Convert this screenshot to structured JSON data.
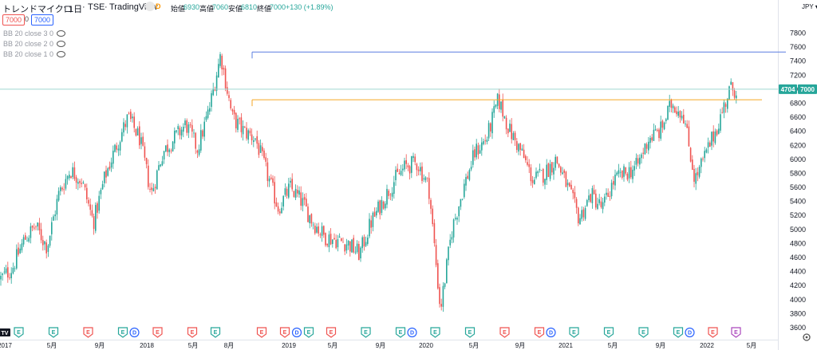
{
  "header": {
    "symbol_name": "トレンドマイクロ",
    "interval": "1日",
    "exchange": "TSE",
    "source": "TradingView",
    "badge": "D",
    "open_label": "始値",
    "open_value": "6930",
    "high_label": "高値",
    "high_value": "7060",
    "low_label": "安値",
    "low_value": "6810",
    "close_label": "終値",
    "close_value": "7000",
    "change": "+130 (+1.89%)"
  },
  "price_box": {
    "sell": "7000",
    "spread": "0",
    "buy": "7000"
  },
  "indicators": [
    {
      "label": "BB 20 close 3 0"
    },
    {
      "label": "BB 20 close 2 0"
    },
    {
      "label": "BB 20 close 1 0"
    }
  ],
  "currency_label": "JPY ▾",
  "logo_text": "TV",
  "colors": {
    "up": "#26a69a",
    "down": "#ef5350",
    "hline_blue": "#5b7fe0",
    "hline_orange": "#f5a623",
    "hline_teal": "#9fd6d1",
    "price_label": "#26a69a",
    "event_E_green": "#26a69a",
    "event_E_red": "#ef5350",
    "event_D": "#2962ff",
    "event_E_purple": "#ab47bc"
  },
  "chart_data": {
    "type": "candlestick",
    "title": "トレンドマイクロ · 1日 · TSE",
    "y_axis": {
      "ticks": [
        3600,
        3800,
        4000,
        4200,
        4400,
        4600,
        4800,
        5000,
        5200,
        5400,
        5600,
        5800,
        6000,
        6200,
        6400,
        6600,
        6800,
        7000,
        7200,
        7400,
        7600,
        7800
      ],
      "ylim": [
        3600,
        7840
      ],
      "position": "right"
    },
    "x_axis": {
      "ticks": [
        "2017",
        "5月",
        "9月",
        "2018",
        "5月",
        "8月",
        "2019",
        "5月",
        "9月",
        "2020",
        "5月",
        "9月",
        "2021",
        "5月",
        "9月",
        "2022",
        "5月"
      ],
      "range": [
        "2017-01",
        "2022-05"
      ]
    },
    "series_path": [
      {
        "date": "2017-01",
        "price": 4300
      },
      {
        "date": "2017-02",
        "price": 4450
      },
      {
        "date": "2017-03",
        "price": 4850
      },
      {
        "date": "2017-04",
        "price": 5050
      },
      {
        "date": "2017-05",
        "price": 4750
      },
      {
        "date": "2017-06",
        "price": 5500
      },
      {
        "date": "2017-07",
        "price": 5850
      },
      {
        "date": "2017-08",
        "price": 5700
      },
      {
        "date": "2017-09",
        "price": 5100
      },
      {
        "date": "2017-10",
        "price": 5750
      },
      {
        "date": "2017-11",
        "price": 6200
      },
      {
        "date": "2017-12",
        "price": 6600
      },
      {
        "date": "2018-01",
        "price": 6300
      },
      {
        "date": "2018-02",
        "price": 5500
      },
      {
        "date": "2018-03",
        "price": 6100
      },
      {
        "date": "2018-04",
        "price": 6300
      },
      {
        "date": "2018-05",
        "price": 6500
      },
      {
        "date": "2018-06",
        "price": 6150
      },
      {
        "date": "2018-07",
        "price": 6700
      },
      {
        "date": "2018-08",
        "price": 7500
      },
      {
        "date": "2018-09",
        "price": 6600
      },
      {
        "date": "2018-10",
        "price": 6400
      },
      {
        "date": "2018-11",
        "price": 6300
      },
      {
        "date": "2018-12",
        "price": 5800
      },
      {
        "date": "2019-01",
        "price": 5300
      },
      {
        "date": "2019-02",
        "price": 5600
      },
      {
        "date": "2019-03",
        "price": 5400
      },
      {
        "date": "2019-04",
        "price": 5100
      },
      {
        "date": "2019-05",
        "price": 4900
      },
      {
        "date": "2019-06",
        "price": 4850
      },
      {
        "date": "2019-07",
        "price": 4800
      },
      {
        "date": "2019-08",
        "price": 4650
      },
      {
        "date": "2019-09",
        "price": 5100
      },
      {
        "date": "2019-10",
        "price": 5400
      },
      {
        "date": "2019-11",
        "price": 5700
      },
      {
        "date": "2019-12",
        "price": 5900
      },
      {
        "date": "2020-01",
        "price": 5950
      },
      {
        "date": "2020-02",
        "price": 5600
      },
      {
        "date": "2020-03",
        "price": 3850
      },
      {
        "date": "2020-04",
        "price": 5000
      },
      {
        "date": "2020-05",
        "price": 5600
      },
      {
        "date": "2020-06",
        "price": 6100
      },
      {
        "date": "2020-07",
        "price": 6300
      },
      {
        "date": "2020-08",
        "price": 6850
      },
      {
        "date": "2020-09",
        "price": 6400
      },
      {
        "date": "2020-10",
        "price": 6100
      },
      {
        "date": "2020-11",
        "price": 5700
      },
      {
        "date": "2020-12",
        "price": 5800
      },
      {
        "date": "2021-01",
        "price": 6000
      },
      {
        "date": "2021-02",
        "price": 5600
      },
      {
        "date": "2021-03",
        "price": 5150
      },
      {
        "date": "2021-04",
        "price": 5500
      },
      {
        "date": "2021-05",
        "price": 5300
      },
      {
        "date": "2021-06",
        "price": 5700
      },
      {
        "date": "2021-07",
        "price": 5800
      },
      {
        "date": "2021-08",
        "price": 5900
      },
      {
        "date": "2021-09",
        "price": 6300
      },
      {
        "date": "2021-10",
        "price": 6400
      },
      {
        "date": "2021-11",
        "price": 6800
      },
      {
        "date": "2021-12",
        "price": 6650
      },
      {
        "date": "2022-01",
        "price": 5700
      },
      {
        "date": "2022-02",
        "price": 6100
      },
      {
        "date": "2022-03",
        "price": 6500
      },
      {
        "date": "2022-04",
        "price": 7000
      }
    ],
    "horizontal_lines": [
      {
        "price": 7530,
        "color": "blue",
        "from": "2018-08",
        "to": "end"
      },
      {
        "price": 6850,
        "color": "orange",
        "from": "2018-08",
        "to": "end"
      },
      {
        "price": 7000,
        "color": "teal",
        "from": "start",
        "to": "axis"
      }
    ],
    "price_labels": [
      {
        "text": "4704",
        "price": 7000
      },
      {
        "text": "7000",
        "price": 7000
      }
    ],
    "events": [
      {
        "date": "2017-01",
        "type": "logo"
      },
      {
        "date": "2017-02",
        "type": "E",
        "color": "green"
      },
      {
        "date": "2017-05",
        "type": "E",
        "color": "green"
      },
      {
        "date": "2017-08",
        "type": "E",
        "color": "red"
      },
      {
        "date": "2017-11",
        "type": "E",
        "color": "green"
      },
      {
        "date": "2017-12",
        "type": "D",
        "color": "blue"
      },
      {
        "date": "2018-02",
        "type": "E",
        "color": "red"
      },
      {
        "date": "2018-05",
        "type": "E",
        "color": "red"
      },
      {
        "date": "2018-07",
        "type": "E",
        "color": "green"
      },
      {
        "date": "2018-11",
        "type": "E",
        "color": "red"
      },
      {
        "date": "2019-01",
        "type": "E",
        "color": "red"
      },
      {
        "date": "2019-01",
        "type": "D",
        "color": "blue"
      },
      {
        "date": "2019-02",
        "type": "E",
        "color": "green"
      },
      {
        "date": "2019-05",
        "type": "E",
        "color": "red"
      },
      {
        "date": "2019-08",
        "type": "E",
        "color": "green"
      },
      {
        "date": "2019-11",
        "type": "E",
        "color": "green"
      },
      {
        "date": "2019-12",
        "type": "D",
        "color": "blue"
      },
      {
        "date": "2020-02",
        "type": "E",
        "color": "green"
      },
      {
        "date": "2020-05",
        "type": "E",
        "color": "green"
      },
      {
        "date": "2020-08",
        "type": "E",
        "color": "red"
      },
      {
        "date": "2020-11",
        "type": "E",
        "color": "red"
      },
      {
        "date": "2020-12",
        "type": "D",
        "color": "blue"
      },
      {
        "date": "2021-02",
        "type": "E",
        "color": "green"
      },
      {
        "date": "2021-05",
        "type": "E",
        "color": "green"
      },
      {
        "date": "2021-08",
        "type": "E",
        "color": "green"
      },
      {
        "date": "2021-11",
        "type": "E",
        "color": "green"
      },
      {
        "date": "2021-12",
        "type": "D",
        "color": "blue"
      },
      {
        "date": "2022-02",
        "type": "E",
        "color": "red"
      },
      {
        "date": "2022-04",
        "type": "E",
        "color": "purple"
      }
    ]
  }
}
